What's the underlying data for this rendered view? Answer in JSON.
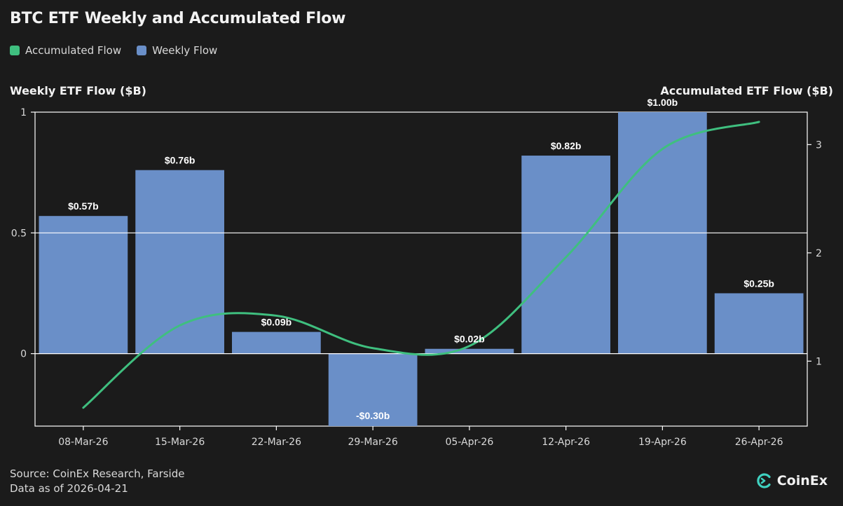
{
  "title": "BTC ETF Weekly and Accumulated Flow",
  "legend": {
    "accumulated_label": "Accumulated Flow",
    "weekly_label": "Weekly Flow",
    "accumulated_color": "#3fbf7f",
    "weekly_color": "#6a8fc8"
  },
  "footer": {
    "source": "Source: CoinEx Research, Farside",
    "date": "Data as of 2026-04-21"
  },
  "brand": {
    "name": "CoinEx",
    "icon": "coinex-logo-icon"
  },
  "chart_data": {
    "type": "bar",
    "title": "BTC ETF Weekly and Accumulated Flow",
    "categories": [
      "08-Mar-26",
      "15-Mar-26",
      "22-Mar-26",
      "29-Mar-26",
      "05-Apr-26",
      "12-Apr-26",
      "19-Apr-26",
      "26-Apr-26"
    ],
    "series": [
      {
        "name": "Weekly Flow",
        "type": "bar",
        "axis": "left",
        "values": [
          0.57,
          0.76,
          0.09,
          -0.3,
          0.02,
          0.82,
          1.0,
          0.25
        ],
        "labels": [
          "$0.57b",
          "$0.76b",
          "$0.09b",
          "-$0.30b",
          "$0.02b",
          "$0.82b",
          "$1.00b",
          "$0.25b"
        ]
      },
      {
        "name": "Accumulated Flow",
        "type": "line",
        "axis": "right",
        "values": [
          0.57,
          1.33,
          1.42,
          1.12,
          1.14,
          1.96,
          2.96,
          3.21
        ]
      }
    ],
    "ylabel_left": "Weekly ETF Flow ($B)",
    "ylabel_right": "Accumulated ETF Flow ($B)",
    "ylim_left": [
      -0.3,
      1.0
    ],
    "ylim_right": [
      0.4,
      3.3
    ],
    "yticks_left": [
      "1",
      "0.5",
      "0"
    ],
    "yticks_right": [
      "3",
      "2",
      "1"
    ],
    "grid": "horizontal at 0 and 0.5",
    "legend_position": "top-left"
  }
}
